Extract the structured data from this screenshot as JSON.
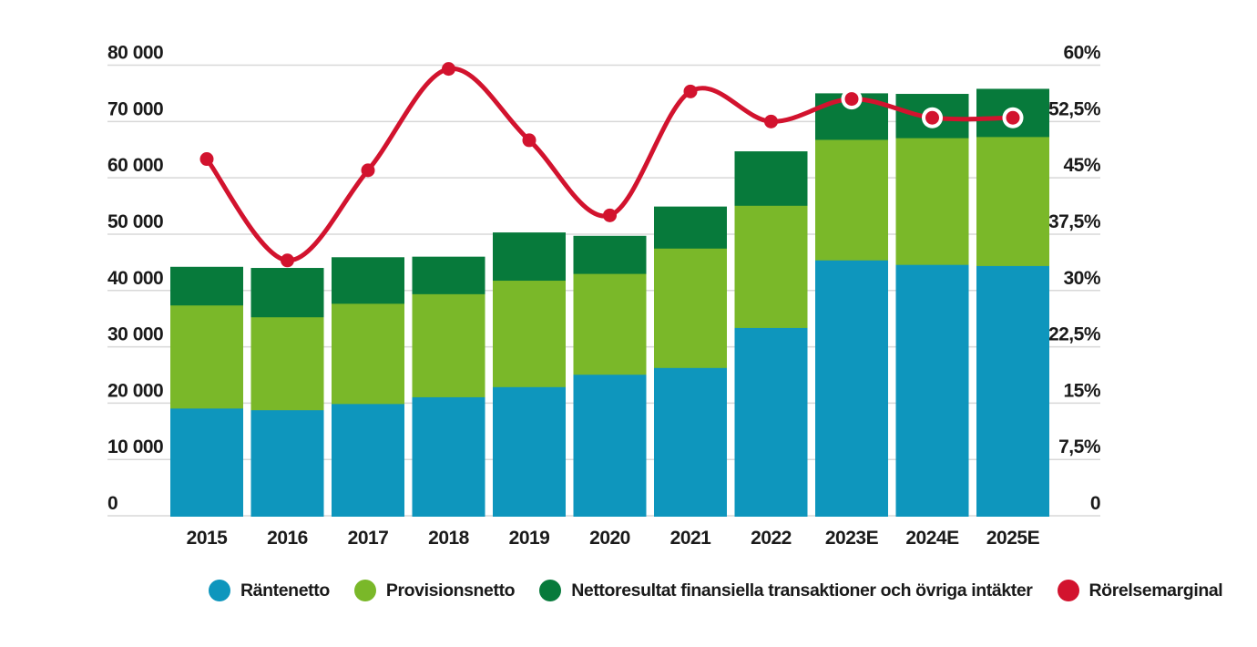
{
  "chart_data": {
    "type": "bar",
    "subtype": "stacked-column-with-line",
    "title": "",
    "categories": [
      "2015",
      "2016",
      "2017",
      "2018",
      "2019",
      "2020",
      "2021",
      "2022",
      "2023E",
      "2024E",
      "2025E"
    ],
    "series": [
      {
        "name": "Räntenetto",
        "color": "#0e96bd",
        "values": [
          19200,
          18900,
          20000,
          21200,
          23000,
          25200,
          26400,
          33500,
          45500,
          44700,
          44500
        ]
      },
      {
        "name": "Provisionsnetto",
        "color": "#7ab829",
        "values": [
          18300,
          16500,
          17800,
          18300,
          18900,
          17900,
          21200,
          21700,
          21400,
          22500,
          22900
        ]
      },
      {
        "name": "Nettoresultat finansiella transaktioner och övriga intäkter",
        "color": "#077a3b",
        "values": [
          6700,
          8600,
          8100,
          6500,
          8400,
          6600,
          7300,
          9500,
          8100,
          7700,
          8400
        ]
      }
    ],
    "line_series": {
      "name": "Rörelsemarginal",
      "color": "#d2132e",
      "axis": "right",
      "values": [
        47.5,
        34,
        46,
        59.5,
        50,
        40,
        56.5,
        52.5,
        55.5,
        53,
        53
      ]
    },
    "left_axis": {
      "min": 0,
      "max": 80000,
      "step": 10000,
      "tick_labels": [
        "0",
        "10 000",
        "20 000",
        "30 000",
        "40 000",
        "50 000",
        "60 000",
        "70 000",
        "80 000"
      ]
    },
    "right_axis": {
      "min": 0,
      "max": 60,
      "step": 7.5,
      "unit": "%",
      "tick_labels": [
        "0",
        "7,5%",
        "15%",
        "22,5%",
        "30%",
        "37,5%",
        "45%",
        "52,5%",
        "60%"
      ]
    },
    "grid": true,
    "legend_position": "bottom",
    "colors": {
      "grid": "#d8d8d8",
      "text": "#1a1a1a",
      "background": "#ffffff"
    }
  }
}
